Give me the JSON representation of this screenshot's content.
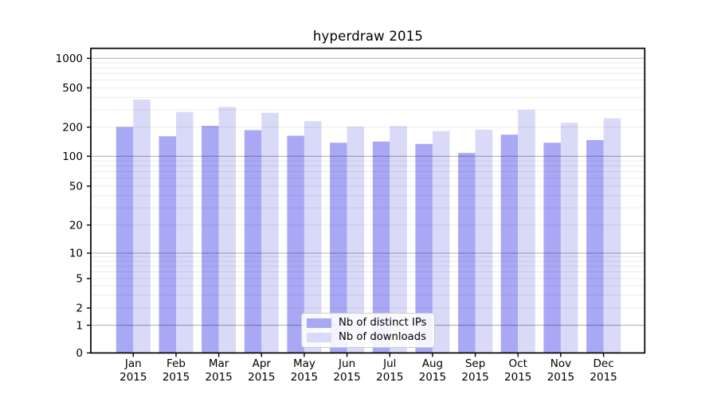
{
  "title": "hyperdraw 2015",
  "colors": {
    "ips_bar": "#a8a8f5",
    "downloads_bar": "#d9d9f8",
    "grid_major": "rgba(0,0,0,0.30)",
    "grid_minor": "rgba(0,0,0,0.08)",
    "axis_line": "#000000",
    "tick_text": "#000000",
    "legend_border": "#cccccc"
  },
  "legend": {
    "items": [
      {
        "label": "Nb of distinct IPs",
        "series": "ips"
      },
      {
        "label": "Nb of downloads",
        "series": "downloads"
      }
    ]
  },
  "chart_data": {
    "type": "bar",
    "title": "hyperdraw 2015",
    "categories": [
      "Jan 2015",
      "Feb 2015",
      "Mar 2015",
      "Apr 2015",
      "May 2015",
      "Jun 2015",
      "Jul 2015",
      "Aug 2015",
      "Sep 2015",
      "Oct 2015",
      "Nov 2015",
      "Dec 2015"
    ],
    "series": [
      {
        "name": "Nb of distinct IPs",
        "color": "#a8a8f5",
        "values": [
          201,
          161,
          206,
          186,
          163,
          138,
          142,
          134,
          108,
          167,
          138,
          147
        ]
      },
      {
        "name": "Nb of downloads",
        "color": "#d9d9f8",
        "values": [
          382,
          284,
          320,
          279,
          230,
          202,
          205,
          182,
          188,
          298,
          221,
          246
        ]
      }
    ],
    "xlabel": "",
    "ylabel": "",
    "yscale": "log with zero baseline",
    "y_ticks": [
      0,
      1,
      2,
      5,
      10,
      20,
      50,
      100,
      200,
      500,
      1000
    ],
    "ylim": [
      0,
      1270
    ],
    "grid": "both (major and minor horizontal gridlines)",
    "legend_position": "lower center"
  }
}
